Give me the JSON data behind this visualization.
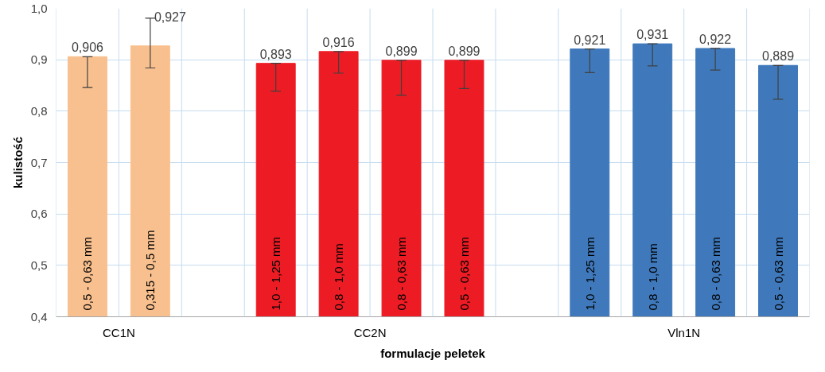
{
  "chart_data": {
    "type": "bar",
    "xlabel": "formulacje peletek",
    "ylabel": "kulistość",
    "categories": [
      "0,5 - 0,63 mm",
      "0,315 - 0,5 mm",
      null,
      "1,0 - 1,25 mm",
      "0,8 - 1,0 mm",
      "0,8 - 0,63 mm",
      "0,5 - 0,63 mm",
      null,
      "1,0 - 1,25 mm",
      "0,8 - 1,0 mm",
      "0,8 - 0,63 mm",
      "0,5 - 0,63 mm"
    ],
    "series": [
      {
        "name": "CC1N",
        "color": "#f9c08f",
        "values": [
          0.906,
          0.927,
          null,
          null,
          null,
          null,
          null,
          null,
          null,
          null,
          null,
          null
        ],
        "value_labels": [
          "0,906",
          "0,927",
          null,
          null,
          null,
          null,
          null,
          null,
          null,
          null,
          null,
          null
        ],
        "errors": [
          [
            0.846,
            0.906
          ],
          [
            0.884,
            0.981
          ],
          null,
          null,
          null,
          null,
          null,
          null,
          null,
          null,
          null,
          null
        ]
      },
      {
        "name": "CC2N",
        "color": "#ed1c24",
        "values": [
          null,
          null,
          null,
          0.893,
          0.916,
          0.899,
          0.899,
          null,
          null,
          null,
          null,
          null
        ],
        "value_labels": [
          null,
          null,
          null,
          "0,893",
          "0,916",
          "0,899",
          "0,899",
          null,
          null,
          null,
          null,
          null
        ],
        "errors": [
          null,
          null,
          null,
          [
            0.839,
            0.893
          ],
          [
            0.874,
            0.916
          ],
          [
            0.831,
            0.899
          ],
          [
            0.844,
            0.899
          ],
          null,
          null,
          null,
          null,
          null
        ]
      },
      {
        "name": "Vln1N",
        "color": "#3f79bb",
        "values": [
          null,
          null,
          null,
          null,
          null,
          null,
          null,
          null,
          0.921,
          0.931,
          0.922,
          0.889
        ],
        "value_labels": [
          null,
          null,
          null,
          null,
          null,
          null,
          null,
          null,
          "0,921",
          "0,931",
          "0,922",
          "0,889"
        ],
        "errors": [
          null,
          null,
          null,
          null,
          null,
          null,
          null,
          null,
          [
            0.875,
            0.921
          ],
          [
            0.888,
            0.931
          ],
          [
            0.88,
            0.922
          ],
          [
            0.823,
            0.889
          ]
        ]
      }
    ],
    "ylim": [
      0.4,
      1.0
    ],
    "yticks": [
      {
        "value": 0.4,
        "label": "0,4"
      },
      {
        "value": 0.5,
        "label": "0,5"
      },
      {
        "value": 0.6,
        "label": "0,6"
      },
      {
        "value": 0.7,
        "label": "0,7"
      },
      {
        "value": 0.8,
        "label": "0,8"
      },
      {
        "value": 0.9,
        "label": "0,9"
      },
      {
        "value": 1.0,
        "label": "1,0"
      }
    ],
    "grid": true
  }
}
